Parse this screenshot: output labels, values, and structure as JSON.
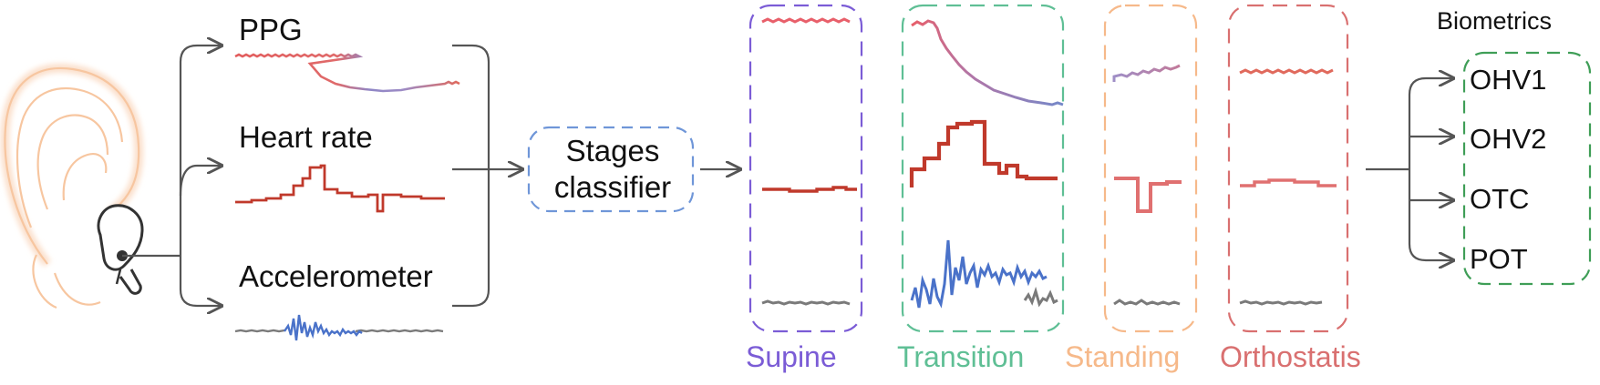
{
  "signals": {
    "ppg": "PPG",
    "heart_rate": "Heart rate",
    "accelerometer": "Accelerometer"
  },
  "classifier": {
    "line1": "Stages",
    "line2": "classifier"
  },
  "stages": [
    {
      "label": "Supine",
      "color": "#7b5cd6"
    },
    {
      "label": "Transition",
      "color": "#5fbf95"
    },
    {
      "label": "Standing",
      "color": "#f6b98a"
    },
    {
      "label": "Orthostatis",
      "color": "#d97070"
    }
  ],
  "biometrics": {
    "title": "Biometrics",
    "items": [
      "OHV1",
      "OHV2",
      "OTC",
      "POT"
    ],
    "color": "#3f9e57"
  },
  "colors": {
    "ear": "#f7c6a0",
    "classifier_border": "#6f96d8",
    "arrow": "#555555",
    "ppg_red": "#e25c5c",
    "ppg_blue": "#7f8ac8",
    "heart_rate": "#c0392b",
    "accelerometer": "#4a72c9",
    "gray_signal": "#7a7a7a"
  }
}
